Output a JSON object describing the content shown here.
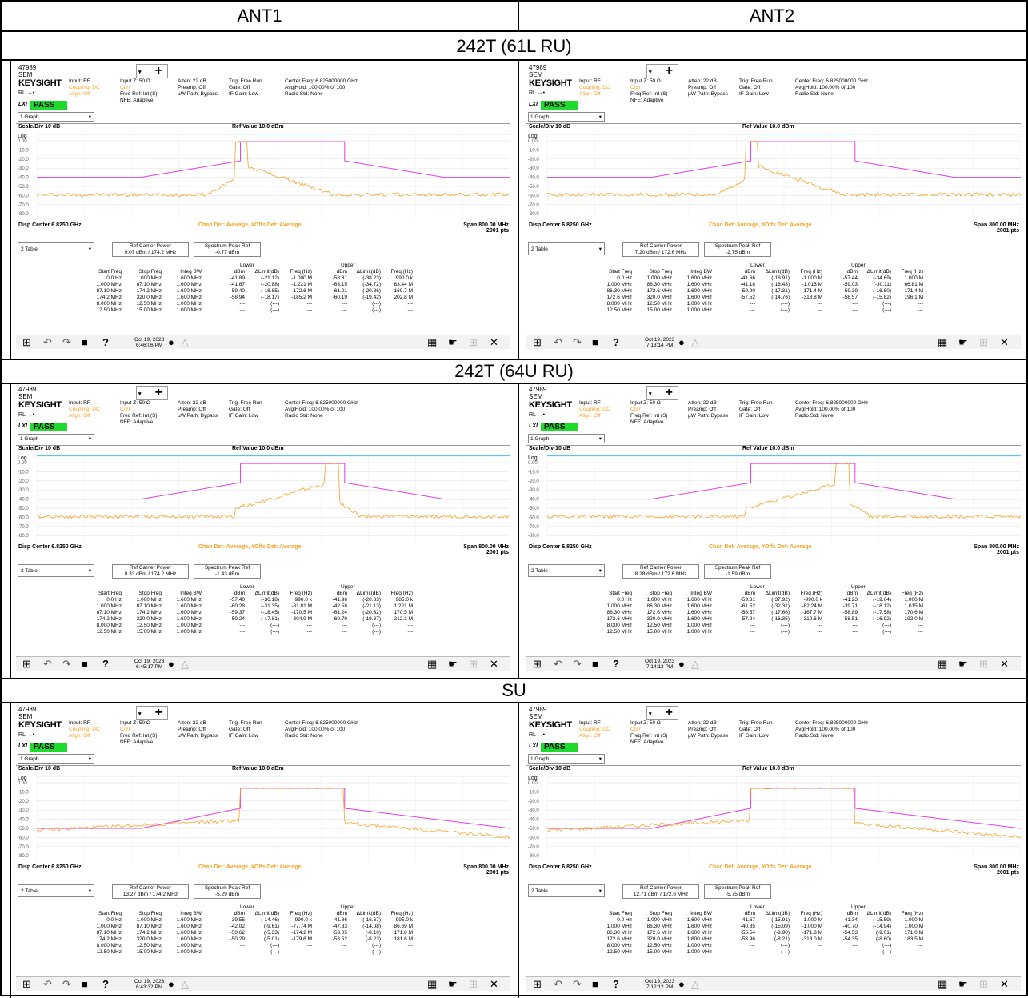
{
  "headers": {
    "ant1": "ANT1",
    "ant2": "ANT2"
  },
  "sections": [
    {
      "title": "242T (61L RU)"
    },
    {
      "title": "242T (64U RU)"
    },
    {
      "title": "SU"
    }
  ],
  "common": {
    "sem_id": "47989",
    "sem_label": "SEM",
    "brand": "KEYSIGHT",
    "input": "Input: RF",
    "coupling": "Coupling: DC",
    "align": "Align: Off",
    "rl": "RL",
    "lxi": "LXI",
    "pass": "PASS",
    "input_z": "Input Z: 50 Ω",
    "corr": "Corr",
    "freq_ref": "Freq Ref: Int (S)",
    "nfe": "NFE: Adaptive",
    "atten": "Atten: 22 dB",
    "preamp": "Preamp: Off",
    "uw_path": "µW Path: Bypass",
    "trig": "Trig: Free Run",
    "gate": "Gate: Off",
    "if_gain": "IF Gain: Low",
    "center_freq": "Center Freq: 6.825000000 GHz",
    "avg_hold": "Avg|Hold: 100.00% of 100",
    "radio_std": "Radio Std: None",
    "graph_sel": "1 Graph",
    "table_sel": "2 Table",
    "scale_div": "Scale/Div 10 dB",
    "ref_value": "Ref Value 10.0 dBm",
    "log": "Log",
    "yticks": [
      "0.00",
      "-10.0",
      "-20.0",
      "-30.0",
      "-40.0",
      "-50.0",
      "-60.0",
      "-70.0",
      "-80.0"
    ],
    "disp_center": "Disp Center 6.8250 GHz",
    "chan_det": "Chan Det: Average, #Offs Det: Average",
    "span": "Span 800.00 MHz",
    "pts": "2001 pts",
    "ref_carrier_label": "Ref Carrier Power",
    "spectrum_peak_label": "Spectrum Peak Ref",
    "lower": "Lower",
    "upper": "Upper",
    "col_headers": [
      "Start Freq",
      "Stop Freq",
      "Integ BW",
      "dBm",
      "ΔLimit(dB)",
      "Freq (Hz)",
      "dBm",
      "ΔLimit(dB)",
      "Freq (Hz)"
    ]
  },
  "panels": [
    {
      "ref_carrier": "9.07 dBm / 174.2 MHz",
      "spectrum_peak": "-0.77 dBm",
      "date": "Oct 19, 2023",
      "time": "6:46:06 PM",
      "rows": [
        [
          "0.0 Hz",
          "1.000 MHz",
          "1.600 MHz",
          "-41.89",
          "(-21.12)",
          "-1.000 M",
          "-58.81",
          "(-38.23)",
          "990.0 k"
        ],
        [
          "1.000 MHz",
          "87.10 MHz",
          "1.600 MHz",
          "-41.67",
          "(-20.88)",
          "-1.221 M",
          "-63.15",
          "(-34.72)",
          "83.44 M"
        ],
        [
          "87.10 MHz",
          "174.2 MHz",
          "1.600 MHz",
          "-59.40",
          "(-18.85)",
          "-172.6 M",
          "-61.01",
          "(-20.86)",
          "169.7 M"
        ],
        [
          "174.2 MHz",
          "320.0 MHz",
          "1.600 MHz",
          "-58.94",
          "(-18.17)",
          "-185.2 M",
          "-60.19",
          "(-19.42)",
          "202.8 M"
        ],
        [
          "8.000 MHz",
          "12.50 MHz",
          "1.000 MHz",
          "---",
          "(---)",
          "---",
          "---",
          "(---)",
          "---"
        ],
        [
          "12.50 MHz",
          "15.00 MHz",
          "1.000 MHz",
          "---",
          "(---)",
          "---",
          "---",
          "(---)",
          "---"
        ]
      ]
    },
    {
      "ref_carrier": "7.20 dBm / 172.6 MHz",
      "spectrum_peak": "-2.75 dBm",
      "date": "Oct 19, 2023",
      "time": "7:13:14 PM",
      "rows": [
        [
          "0.0 Hz",
          "1.000 MHz",
          "1.600 MHz",
          "-41.66",
          "(-18.91)",
          "-1.000 M",
          "-57.44",
          "(-34.69)",
          "1.000 M"
        ],
        [
          "1.000 MHz",
          "86.30 MHz",
          "1.600 MHz",
          "-41.18",
          "(-18.43)",
          "-1.015 M",
          "-59.03",
          "(-30.11)",
          "66.81 M"
        ],
        [
          "86.30 MHz",
          "172.6 MHz",
          "1.600 MHz",
          "-59.90",
          "(-17.31)",
          "-171.4 M",
          "-59.39",
          "(-16.80)",
          "171.4 M"
        ],
        [
          "172.6 MHz",
          "320.0 MHz",
          "1.600 MHz",
          "-57.52",
          "(-14.76)",
          "-318.8 M",
          "-58.57",
          "(-15.82)",
          "196.1 M"
        ],
        [
          "8.000 MHz",
          "12.50 MHz",
          "1.000 MHz",
          "---",
          "(---)",
          "---",
          "---",
          "(---)",
          "---"
        ],
        [
          "12.50 MHz",
          "15.00 MHz",
          "1.000 MHz",
          "---",
          "(---)",
          "---",
          "---",
          "(---)",
          "---"
        ]
      ]
    },
    {
      "ref_carrier": "8.33 dBm / 174.2 MHz",
      "spectrum_peak": "-1.43 dBm",
      "date": "Oct 19, 2023",
      "time": "6:45:17 PM",
      "rows": [
        [
          "0.0 Hz",
          "1.000 MHz",
          "1.600 MHz",
          "-57.40",
          "(-36.18)",
          "-990.0 k",
          "-41.96",
          "(-20.83)",
          "985.0 k"
        ],
        [
          "1.000 MHz",
          "87.10 MHz",
          "1.600 MHz",
          "-60.28",
          "(-31.35)",
          "-81.81 M",
          "-42.58",
          "(-21.13)",
          "1.221 M"
        ],
        [
          "87.10 MHz",
          "174.2 MHz",
          "1.600 MHz",
          "-59.37",
          "(-18.45)",
          "-170.5 M",
          "-61.24",
          "(-20.32)",
          "170.5 M"
        ],
        [
          "174.2 MHz",
          "320.0 MHz",
          "1.600 MHz",
          "-59.24",
          "(-17.81)",
          "-304.9 M",
          "-60.79",
          "(-19.37)",
          "212.1 M"
        ],
        [
          "8.000 MHz",
          "12.50 MHz",
          "1.000 MHz",
          "---",
          "(---)",
          "---",
          "---",
          "(---)",
          "---"
        ],
        [
          "12.50 MHz",
          "15.00 MHz",
          "1.000 MHz",
          "---",
          "(---)",
          "---",
          "---",
          "(---)",
          "---"
        ]
      ]
    },
    {
      "ref_carrier": "8.28 dBm / 172.6 MHz",
      "spectrum_peak": "-1.59 dBm",
      "date": "Oct 19, 2023",
      "time": "7:14:13 PM",
      "rows": [
        [
          "0.0 Hz",
          "1.000 MHz",
          "1.600 MHz",
          "-59.31",
          "(-37.92)",
          "-990.0 k",
          "-41.23",
          "(-19.64)",
          "1.000 M"
        ],
        [
          "1.000 MHz",
          "86.30 MHz",
          "1.600 MHz",
          "-61.52",
          "(-32.31)",
          "-82.24 M",
          "-39.71",
          "(-18.12)",
          "1.015 M"
        ],
        [
          "86.30 MHz",
          "172.6 MHz",
          "1.600 MHz",
          "-58.57",
          "(-17.66)",
          "-167.7 M",
          "-58.89",
          "(-17.58)",
          "170.6 M"
        ],
        [
          "172.6 MHz",
          "320.0 MHz",
          "1.600 MHz",
          "-57.94",
          "(-16.35)",
          "-319.6 M",
          "-58.51",
          "(-16.92)",
          "192.0 M"
        ],
        [
          "8.000 MHz",
          "12.50 MHz",
          "1.000 MHz",
          "---",
          "(---)",
          "---",
          "---",
          "(---)",
          "---"
        ],
        [
          "12.50 MHz",
          "15.00 MHz",
          "1.000 MHz",
          "---",
          "(---)",
          "---",
          "---",
          "(---)",
          "---"
        ]
      ]
    },
    {
      "ref_carrier": "13.27 dBm / 174.2 MHz",
      "spectrum_peak": "-5.29 dBm",
      "date": "Oct 19, 2023",
      "time": "6:43:32 PM",
      "rows": [
        [
          "0.0 Hz",
          "1.000 MHz",
          "1.600 MHz",
          "-39.55",
          "(-14.46)",
          "-990.0 k",
          "-41.86",
          "(-16.67)",
          "995.0 k"
        ],
        [
          "1.000 MHz",
          "87.10 MHz",
          "1.600 MHz",
          "-42.02",
          "(-9.61)",
          "-77.74 M",
          "-47.33",
          "(-14.08)",
          "86.69 M"
        ],
        [
          "87.10 MHz",
          "174.2 MHz",
          "1.600 MHz",
          "-50.62",
          "(-5.33)",
          "-174.2 M",
          "-53.05",
          "(-8.10)",
          "171.8 M"
        ],
        [
          "174.2 MHz",
          "320.0 MHz",
          "1.600 MHz",
          "-50.29",
          "(-5.01)",
          "-179.6 M",
          "-53.52",
          "(-8.23)",
          "181.6 M"
        ],
        [
          "8.000 MHz",
          "12.50 MHz",
          "1.000 MHz",
          "---",
          "(---)",
          "---",
          "---",
          "(---)",
          "---"
        ],
        [
          "12.50 MHz",
          "15.00 MHz",
          "1.000 MHz",
          "---",
          "(---)",
          "---",
          "---",
          "(---)",
          "---"
        ]
      ]
    },
    {
      "ref_carrier": "12.71 dBm / 172.6 MHz",
      "spectrum_peak": "-5.75 dBm",
      "date": "Oct 19, 2023",
      "time": "7:12:12 PM",
      "rows": [
        [
          "0.0 Hz",
          "1.000 MHz",
          "1.600 MHz",
          "-41.67",
          "(-15.91)",
          "-1.000 M",
          "-41.34",
          "(-15.59)",
          "1.000 M"
        ],
        [
          "1.000 MHz",
          "86.30 MHz",
          "1.600 MHz",
          "-40.85",
          "(-15.09)",
          "-1.000 M",
          "-40.70",
          "(-14.94)",
          "1.000 M"
        ],
        [
          "86.30 MHz",
          "172.6 MHz",
          "1.600 MHz",
          "-55.54",
          "(-9.90)",
          "-171.8 M",
          "-54.53",
          "(-9.01)",
          "171.0 M"
        ],
        [
          "172.6 MHz",
          "320.0 MHz",
          "1.600 MHz",
          "-53.96",
          "(-8.21)",
          "-318.0 M",
          "-54.35",
          "(-8.60)",
          "183.5 M"
        ],
        [
          "8.000 MHz",
          "12.50 MHz",
          "1.000 MHz",
          "---",
          "(---)",
          "---",
          "---",
          "(---)",
          "---"
        ],
        [
          "12.50 MHz",
          "15.00 MHz",
          "1.000 MHz",
          "---",
          "(---)",
          "---",
          "---",
          "(---)",
          "---"
        ]
      ]
    }
  ],
  "colors": {
    "mask": "#e040e0",
    "trace": "#f5a32a",
    "ref_line": "#40c0e0",
    "pass": "#1ddb2c"
  }
}
